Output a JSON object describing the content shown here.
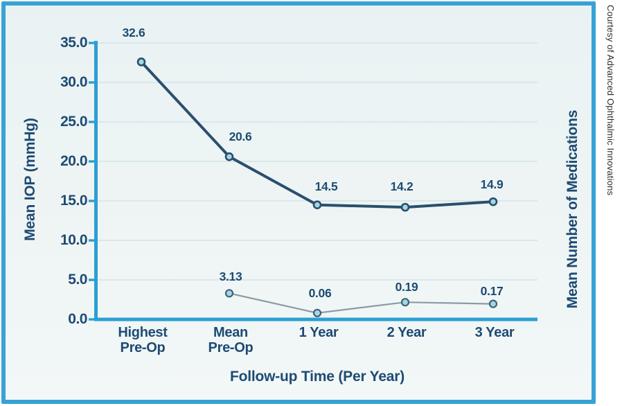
{
  "figure": {
    "credit": "Courtesy of Advanced Ophthalmic Innovations"
  },
  "chart_data": {
    "type": "line",
    "title": "",
    "categories": [
      "Highest\nPre-Op",
      "Mean\nPre-Op",
      "1 Year",
      "2 Year",
      "3 Year"
    ],
    "series": [
      {
        "name": "Mean IOP (mmHg)",
        "axis": "left",
        "values": [
          32.6,
          20.6,
          14.5,
          14.2,
          14.9
        ],
        "point_labels": [
          "32.6",
          "20.6",
          "14.5",
          "14.2",
          "14.9"
        ],
        "color": "#2a4f6e"
      },
      {
        "name": "Mean Number of Medications",
        "axis": "right",
        "values": [
          null,
          3.13,
          0.06,
          0.19,
          0.17
        ],
        "point_labels": [
          null,
          "3.13",
          "0.06",
          "0.19",
          "0.17"
        ],
        "color": "#8b9aa4"
      }
    ],
    "xlabel": "Follow-up Time (Per Year)",
    "ylabel_left": "Mean IOP (mmHg)",
    "ylabel_right": "Mean Number of Medications",
    "ylim": [
      0,
      35
    ],
    "ytick_step": 5,
    "ytick_labels": [
      "0.0",
      "5.0",
      "10.0",
      "15.0",
      "20.0",
      "25.0",
      "30.0",
      "35.0"
    ],
    "grid": true,
    "legend": "none",
    "marker": "circle"
  },
  "colors": {
    "frame_border": "#38a2d4",
    "plot_background": "#eef4f4",
    "axis": "#2b9fd3",
    "gridline": "#d2e4e9",
    "text": "#1d4b73",
    "marker_fill": "#a5d7e3",
    "credit_text": "#2d2d2d"
  }
}
